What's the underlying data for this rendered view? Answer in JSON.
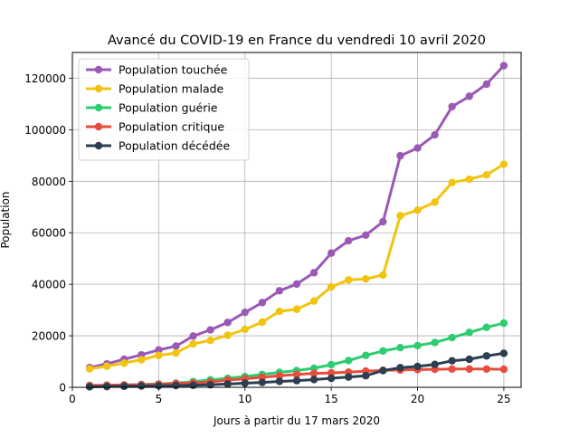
{
  "chart_data": {
    "type": "line",
    "title": "Avancé du COVID-19 en France du vendredi 10 avril 2020",
    "xlabel": "Jours à partir du 17 mars 2020",
    "ylabel": "Population",
    "xlim": [
      0,
      26
    ],
    "ylim": [
      0,
      130000
    ],
    "xticks": [
      0,
      5,
      10,
      15,
      20,
      25
    ],
    "yticks": [
      0,
      20000,
      40000,
      60000,
      80000,
      100000,
      120000
    ],
    "grid": true,
    "legend_position": "top-left",
    "x": [
      1,
      2,
      3,
      4,
      5,
      6,
      7,
      8,
      9,
      10,
      11,
      12,
      13,
      14,
      15,
      16,
      17,
      18,
      19,
      20,
      21,
      22,
      23,
      24,
      25
    ],
    "series": [
      {
        "name": "Population touchée",
        "color": "#9b59b6",
        "values": [
          7700,
          9100,
          10900,
          12600,
          14500,
          16000,
          19900,
          22300,
          25200,
          29100,
          32900,
          37500,
          40100,
          44500,
          52100,
          56900,
          59100,
          64300,
          89900,
          92900,
          98000,
          109000,
          113000,
          117700,
          124900
        ]
      },
      {
        "name": "Population malade",
        "color": "#f1c40f",
        "values": [
          7200,
          8200,
          9400,
          10700,
          12400,
          13300,
          16900,
          18200,
          20200,
          22500,
          25300,
          29500,
          30300,
          33500,
          39000,
          41700,
          42100,
          43600,
          66600,
          68800,
          71900,
          79500,
          80800,
          82500,
          86600
        ]
      },
      {
        "name": "Population guérie",
        "color": "#2ecc71",
        "values": [
          700,
          800,
          900,
          1100,
          1300,
          1600,
          2200,
          2900,
          3500,
          4200,
          5000,
          5800,
          6500,
          7400,
          8800,
          10400,
          12400,
          14100,
          15400,
          16200,
          17400,
          19300,
          21300,
          23300,
          24900
        ]
      },
      {
        "name": "Population critique",
        "color": "#e74c3c",
        "values": [
          700,
          800,
          900,
          1000,
          1200,
          1500,
          1700,
          2100,
          2800,
          3300,
          3900,
          4500,
          5000,
          5400,
          5600,
          5900,
          6300,
          6600,
          6700,
          6900,
          7000,
          7100,
          7100,
          7100,
          7000
        ]
      },
      {
        "name": "Population décédée",
        "color": "#2c3e50",
        "values": [
          200,
          300,
          400,
          500,
          600,
          700,
          800,
          1000,
          1300,
          1600,
          1900,
          2300,
          2600,
          3000,
          3500,
          4000,
          4500,
          6500,
          7600,
          8100,
          8900,
          10300,
          10900,
          12200,
          13200
        ]
      }
    ]
  }
}
